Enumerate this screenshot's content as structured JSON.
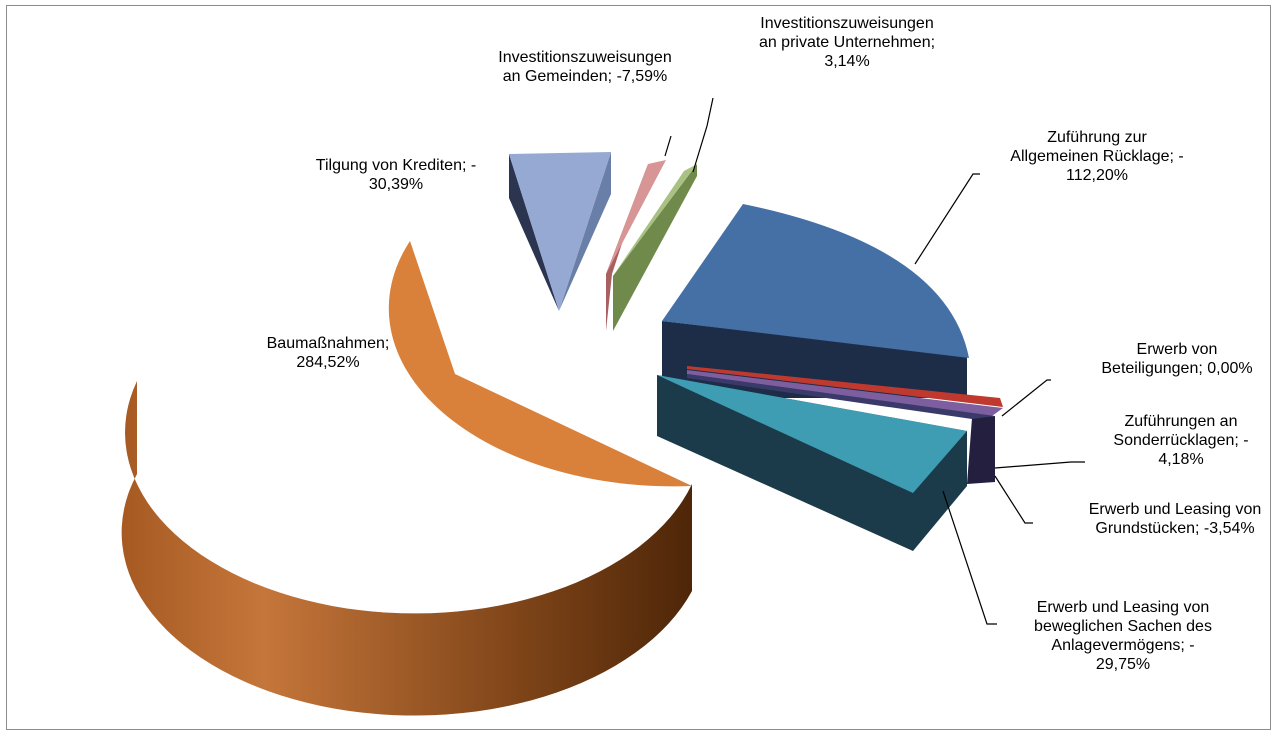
{
  "chart_data": {
    "type": "pie",
    "title": "",
    "style": "3d-exploded",
    "slices": [
      {
        "label_lines": [
          "Baumaßnahmen;",
          "284,52%"
        ],
        "category": "Baumaßnahmen",
        "value": 284.52,
        "color": "#d9803a"
      },
      {
        "label_lines": [
          "Tilgung von Krediten; -",
          "30,39%"
        ],
        "category": "Tilgung von Krediten",
        "value": -30.39,
        "color": "#95a9d3"
      },
      {
        "label_lines": [
          "Investitionszuweisungen",
          "an Gemeinden; -7,59%"
        ],
        "category": "Investitionszuweisungen an Gemeinden",
        "value": -7.59,
        "color": "#d89595"
      },
      {
        "label_lines": [
          "Investitionszuweisungen",
          "an private Unternehmen;",
          "3,14%"
        ],
        "category": "Investitionszuweisungen an private Unternehmen",
        "value": 3.14,
        "color": "#a9c283"
      },
      {
        "label_lines": [
          "Zuführung zur",
          "Allgemeinen Rücklage; -",
          "112,20%"
        ],
        "category": "Zuführung zur Allgemeinen Rücklage",
        "value": -112.2,
        "color": "#4470a6"
      },
      {
        "label_lines": [
          "Erwerb von",
          "Beteiligungen; 0,00%"
        ],
        "category": "Erwerb von Beteiligungen",
        "value": 0.0,
        "color": "#c0392f"
      },
      {
        "label_lines": [
          "Zuführungen an",
          "Sonderrücklagen; -",
          "4,18%"
        ],
        "category": "Zuführungen an Sonderrücklagen",
        "value": -4.18,
        "color": "#7d5fa0"
      },
      {
        "label_lines": [
          "Erwerb und Leasing von",
          "Grundstücken; -3,54%"
        ],
        "category": "Erwerb und Leasing von Grundstücken",
        "value": -3.54,
        "color": "#3a3a6a"
      },
      {
        "label_lines": [
          "Erwerb und Leasing von",
          "beweglichen Sachen des",
          "Anlagevermögens; -",
          "29,75%"
        ],
        "category": "Erwerb und Leasing von beweglichen Sachen des Anlagevermögens",
        "value": -29.75,
        "color": "#3f9db3"
      }
    ]
  }
}
